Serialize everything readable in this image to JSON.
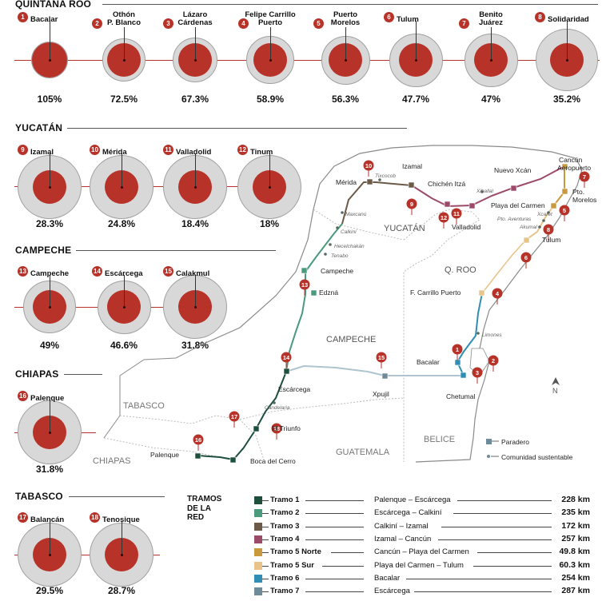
{
  "sections": {
    "quintana_roo": "QUINTANA ROO",
    "yucatan": "YUCATÁN",
    "campeche": "CAMPECHE",
    "chiapas": "CHIAPAS",
    "tabasco": "TABASCO"
  },
  "stations": [
    {
      "num": "1",
      "name": "Bacalar",
      "pct": "105%",
      "level": 1.05
    },
    {
      "num": "2",
      "name": "Othón\nP. Blanco",
      "pct": "72.5%",
      "level": 0.725
    },
    {
      "num": "3",
      "name": "Lázaro\nCárdenas",
      "pct": "67.3%",
      "level": 0.673
    },
    {
      "num": "4",
      "name": "Felipe Carrillo\nPuerto",
      "pct": "58.9%",
      "level": 0.589
    },
    {
      "num": "5",
      "name": "Puerto\nMorelos",
      "pct": "56.3%",
      "level": 0.563
    },
    {
      "num": "6",
      "name": "Tulum",
      "pct": "47.7%",
      "level": 0.477
    },
    {
      "num": "7",
      "name": "Benito\nJuárez",
      "pct": "47%",
      "level": 0.47
    },
    {
      "num": "8",
      "name": "Solidaridad",
      "pct": "35.2%",
      "level": 0.352
    },
    {
      "num": "9",
      "name": "Izamal",
      "pct": "28.3%",
      "level": 0.283
    },
    {
      "num": "10",
      "name": "Mérida",
      "pct": "24.8%",
      "level": 0.248
    },
    {
      "num": "11",
      "name": "Valladolid",
      "pct": "18.4%",
      "level": 0.184
    },
    {
      "num": "12",
      "name": "Tinum",
      "pct": "18%",
      "level": 0.18
    },
    {
      "num": "13",
      "name": "Campeche",
      "pct": "49%",
      "level": 0.49
    },
    {
      "num": "14",
      "name": "Escárcega",
      "pct": "46.6%",
      "level": 0.466
    },
    {
      "num": "15",
      "name": "Calakmul",
      "pct": "31.8%",
      "level": 0.318
    },
    {
      "num": "16",
      "name": "Palenque",
      "pct": "31.8%",
      "level": 0.318
    },
    {
      "num": "17",
      "name": "Balancán",
      "pct": "29.5%",
      "level": 0.295
    },
    {
      "num": "18",
      "name": "Tenosique",
      "pct": "28.7%",
      "level": 0.287
    }
  ],
  "map": {
    "regions": {
      "yucatan": "YUCATÁN",
      "qroo": "Q. ROO",
      "campeche": "CAMPECHE",
      "tabasco": "TABASCO",
      "chiapas": "CHIAPAS",
      "guatemala": "GUATEMALA",
      "belice": "BELICE"
    },
    "stops": {
      "merida": "Mérida",
      "izamal": "Izamal",
      "chichen": "Chichén Itzá",
      "valladolid": "Valladolid",
      "nuevo_xcan": "Nuevo Xcán",
      "cancun": "Cancún\nAeropuerto",
      "pto_morelos": "Pto.\nMorelos",
      "playa": "Playa del Carmen",
      "tulum": "Tulum",
      "fcp": "F. Carrillo Puerto",
      "bacalar": "Bacalar",
      "chetumal": "Chetumal",
      "xpujil": "Xpujil",
      "escarcega": "Escárcega",
      "campeche": "Campeche",
      "edzna": "Edzná",
      "el_triunfo": "El Triunfo",
      "palenque": "Palenque",
      "boca": "Boca del Cerro"
    },
    "communities": {
      "tixcocob": "Tixcocob",
      "maxcanu": "Maxcanú",
      "calkini": "Calkiní",
      "hecelchakan": "Hecelchakán",
      "tenabo": "Tenabo",
      "xiballal": "Xiballal",
      "xcaret": "Xcaret",
      "aventuras": "Pto. Aventuras",
      "akumal": "Akumal",
      "limones": "Limones",
      "candelaria": "Candelaria"
    },
    "north": "N",
    "legend_paradero": "Paradero",
    "legend_comunidad": "Comunidad sustentable"
  },
  "tramos": {
    "title": "TRAMOS\nDE LA\nRED",
    "rows": [
      {
        "name": "Tramo 1",
        "route": "Palenque – Escárcega",
        "km": "228 km",
        "color": "#1d4f3c"
      },
      {
        "name": "Tramo 2",
        "route": "Escárcega – Calkiní",
        "km": "235 km",
        "color": "#4a9a7c"
      },
      {
        "name": "Tramo 3",
        "route": "Calkiní – Izamal",
        "km": "172 km",
        "color": "#6b5a48"
      },
      {
        "name": "Tramo 4",
        "route": "Izamal – Cancún",
        "km": "257 km",
        "color": "#9c4a6a"
      },
      {
        "name": "Tramo 5 Norte",
        "route": "Cancún – Playa del Carmen",
        "km": "49.8 km",
        "color": "#c99a3c"
      },
      {
        "name": "Tramo 5 Sur",
        "route": "Playa del Carmen – Tulum",
        "km": "60.3 km",
        "color": "#e8c48a"
      },
      {
        "name": "Tramo 6",
        "route": "Bacalar",
        "km": "254 km",
        "color": "#2f8eb4"
      },
      {
        "name": "Tramo 7",
        "route": "Escárcega",
        "km": "287 km",
        "color": "#6f8a98"
      }
    ]
  },
  "colors": {
    "accent": "#b73228",
    "ring": "#d8d8d8",
    "land": "#ffffff",
    "border": "#888888"
  }
}
